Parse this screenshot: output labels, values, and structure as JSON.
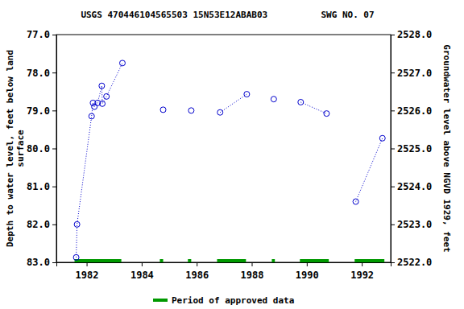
{
  "chart_data": {
    "type": "line",
    "title": "USGS 470446104565503 15N53E12ABAB03          SWG NO. 07",
    "y_label": "Depth to water level, feet below land\nsurface",
    "y2_label": "Groundwater level above NGVD 1929, feet",
    "xlim": [
      1980.9,
      1993.05
    ],
    "xticks": [
      1982,
      1984,
      1986,
      1988,
      1990,
      1992
    ],
    "ylim": [
      83,
      77
    ],
    "yticks": [
      {
        "value": 77,
        "label": "77.0"
      },
      {
        "value": 78,
        "label": "78.0"
      },
      {
        "value": 79,
        "label": "79.0"
      },
      {
        "value": 80,
        "label": "80.0"
      },
      {
        "value": 81,
        "label": "81.0"
      },
      {
        "value": 82,
        "label": "82.0"
      },
      {
        "value": 83,
        "label": "83.0"
      }
    ],
    "y2lim": [
      2522,
      2528
    ],
    "y2ticks": [
      {
        "value": 2522,
        "label": "2522.0"
      },
      {
        "value": 2523,
        "label": "2523.0"
      },
      {
        "value": 2524,
        "label": "2524.0"
      },
      {
        "value": 2525,
        "label": "2525.0"
      },
      {
        "value": 2526,
        "label": "2526.0"
      },
      {
        "value": 2527,
        "label": "2527.0"
      },
      {
        "value": 2528,
        "label": "2528.0"
      }
    ],
    "series": [
      {
        "color": "#0000cc",
        "marker": "circle",
        "line_style": "dotted",
        "x": [
          1981.62,
          1981.65,
          1982.18,
          1982.23,
          1982.28,
          1982.4,
          1982.55,
          1982.57,
          1982.72,
          1983.3
        ],
        "values": [
          82.87,
          82.0,
          79.15,
          78.8,
          78.9,
          78.8,
          78.35,
          78.82,
          78.63,
          77.75
        ]
      },
      {
        "color": "#0000cc",
        "marker": "circle",
        "line_style": "dotted",
        "x": [
          1984.78
        ],
        "values": [
          78.98
        ]
      },
      {
        "color": "#0000cc",
        "marker": "circle",
        "line_style": "dotted",
        "x": [
          1985.8
        ],
        "values": [
          79.0
        ]
      },
      {
        "color": "#0000cc",
        "marker": "circle",
        "line_style": "dotted",
        "x": [
          1986.85,
          1987.82
        ],
        "values": [
          79.05,
          78.57
        ]
      },
      {
        "color": "#0000cc",
        "marker": "circle",
        "line_style": "dotted",
        "x": [
          1988.8
        ],
        "values": [
          78.7
        ]
      },
      {
        "color": "#0000cc",
        "marker": "circle",
        "line_style": "dotted",
        "x": [
          1989.78,
          1990.72
        ],
        "values": [
          78.78,
          79.08
        ]
      },
      {
        "color": "#0000cc",
        "marker": "circle",
        "line_style": "dotted",
        "x": [
          1991.78,
          1992.75
        ],
        "values": [
          81.4,
          79.73
        ]
      }
    ],
    "approved_data": {
      "name": "Period of approved data",
      "color": "#009900",
      "ranges": [
        [
          1981.56,
          1983.26
        ],
        [
          1984.66,
          1984.78
        ],
        [
          1985.68,
          1985.8
        ],
        [
          1986.74,
          1987.79
        ],
        [
          1988.73,
          1988.84
        ],
        [
          1989.75,
          1990.8
        ],
        [
          1991.74,
          1992.82
        ]
      ]
    },
    "legend": "bottom"
  }
}
